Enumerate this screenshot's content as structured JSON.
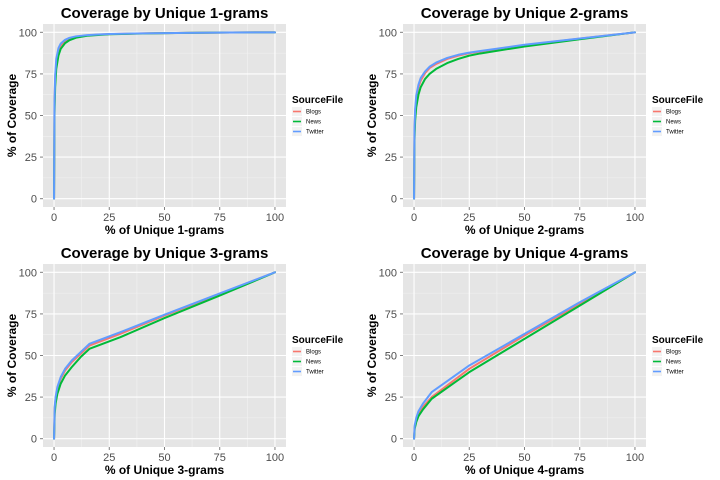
{
  "chart_data": [
    {
      "type": "line",
      "title": "Coverage by Unique 1-grams",
      "xlabel": "% of Unique 1-grams",
      "ylabel": "% of Coverage",
      "xlim": [
        0,
        100
      ],
      "ylim": [
        0,
        100
      ],
      "x_ticks": [
        0,
        25,
        50,
        75,
        100
      ],
      "y_ticks": [
        0,
        25,
        50,
        75,
        100
      ],
      "grid": true,
      "legend": {
        "title": "SourceFile",
        "placement": "right"
      },
      "series": [
        {
          "name": "Blogs",
          "color": "#f8766d",
          "x": [
            0,
            0.2,
            0.5,
            1,
            2,
            3,
            5,
            7,
            10,
            15,
            20,
            25,
            40,
            60,
            80,
            100
          ],
          "y": [
            0,
            55,
            72,
            82,
            89,
            92,
            95,
            96.3,
            97.3,
            98.1,
            98.6,
            98.9,
            99.4,
            99.7,
            99.9,
            100
          ]
        },
        {
          "name": "News",
          "color": "#00ba38",
          "x": [
            0,
            0.2,
            0.5,
            1,
            2,
            3,
            5,
            7,
            10,
            15,
            20,
            25,
            40,
            60,
            80,
            100
          ],
          "y": [
            0,
            50,
            67,
            78,
            86,
            90,
            93.5,
            95.3,
            96.8,
            97.9,
            98.4,
            98.8,
            99.3,
            99.7,
            99.9,
            100
          ]
        },
        {
          "name": "Twitter",
          "color": "#619cff",
          "x": [
            0,
            0.2,
            0.5,
            1,
            2,
            3,
            5,
            7,
            10,
            15,
            20,
            25,
            40,
            60,
            80,
            100
          ],
          "y": [
            0,
            57,
            74,
            84,
            90.5,
            93.2,
            95.5,
            96.7,
            97.6,
            98.3,
            98.7,
            99,
            99.4,
            99.7,
            99.9,
            100
          ]
        }
      ]
    },
    {
      "type": "line",
      "title": "Coverage by Unique 2-grams",
      "xlabel": "% of Unique 2-grams",
      "ylabel": "% of Coverage",
      "xlim": [
        0,
        100
      ],
      "ylim": [
        0,
        100
      ],
      "x_ticks": [
        0,
        25,
        50,
        75,
        100
      ],
      "y_ticks": [
        0,
        25,
        50,
        75,
        100
      ],
      "grid": true,
      "legend": {
        "title": "SourceFile",
        "placement": "right"
      },
      "series": [
        {
          "name": "Blogs",
          "color": "#f8766d",
          "x": [
            0,
            0.2,
            0.5,
            1,
            2,
            3,
            5,
            7,
            10,
            15,
            20,
            25,
            30,
            50,
            75,
            100
          ],
          "y": [
            0,
            40,
            52,
            60,
            67,
            71,
            75.5,
            78.5,
            81,
            84,
            86,
            87.5,
            88.5,
            92.3,
            96.2,
            100
          ]
        },
        {
          "name": "News",
          "color": "#00ba38",
          "x": [
            0,
            0.2,
            0.5,
            1,
            2,
            3,
            5,
            7,
            10,
            15,
            20,
            25,
            30,
            50,
            75,
            100
          ],
          "y": [
            0,
            35,
            47,
            55,
            62.5,
            67,
            72,
            75,
            78,
            81.5,
            84,
            86,
            87.3,
            91.5,
            95.8,
            100
          ]
        },
        {
          "name": "Twitter",
          "color": "#619cff",
          "x": [
            0,
            0.2,
            0.5,
            1,
            2,
            3,
            5,
            7,
            10,
            15,
            20,
            25,
            30,
            50,
            75,
            100
          ],
          "y": [
            0,
            42,
            54,
            62,
            68.5,
            72.5,
            76.5,
            79.3,
            81.8,
            84.6,
            86.5,
            87.8,
            88.8,
            92.5,
            96.3,
            100
          ]
        }
      ]
    },
    {
      "type": "line",
      "title": "Coverage by Unique 3-grams",
      "xlabel": "% of Unique 3-grams",
      "ylabel": "% of Coverage",
      "xlim": [
        0,
        100
      ],
      "ylim": [
        0,
        100
      ],
      "x_ticks": [
        0,
        25,
        50,
        75,
        100
      ],
      "y_ticks": [
        0,
        25,
        50,
        75,
        100
      ],
      "grid": true,
      "legend": {
        "title": "SourceFile",
        "placement": "right"
      },
      "series": [
        {
          "name": "Blogs",
          "color": "#f8766d",
          "x": [
            0,
            0.3,
            0.7,
            1.5,
            3,
            5,
            8,
            12,
            16,
            30,
            50,
            75,
            100
          ],
          "y": [
            0,
            18,
            24,
            30,
            36,
            41,
            46,
            51,
            56,
            63,
            74,
            87,
            100
          ]
        },
        {
          "name": "News",
          "color": "#00ba38",
          "x": [
            0,
            0.3,
            0.7,
            1.5,
            3,
            5,
            8,
            12,
            16,
            30,
            50,
            75,
            100
          ],
          "y": [
            0,
            15,
            21,
            27,
            33,
            38,
            43,
            49,
            54,
            61,
            72.5,
            86,
            100
          ]
        },
        {
          "name": "Twitter",
          "color": "#619cff",
          "x": [
            0,
            0.3,
            0.7,
            1.5,
            3,
            5,
            8,
            12,
            16,
            30,
            50,
            75,
            100
          ],
          "y": [
            0,
            19,
            25,
            31,
            37,
            42,
            47,
            52,
            57,
            64,
            74.5,
            87.3,
            100
          ]
        }
      ]
    },
    {
      "type": "line",
      "title": "Coverage by Unique 4-grams",
      "xlabel": "% of Unique 4-grams",
      "ylabel": "% of Coverage",
      "xlim": [
        0,
        100
      ],
      "ylim": [
        0,
        100
      ],
      "x_ticks": [
        0,
        25,
        50,
        75,
        100
      ],
      "y_ticks": [
        0,
        25,
        50,
        75,
        100
      ],
      "grid": true,
      "legend": {
        "title": "SourceFile",
        "placement": "right"
      },
      "series": [
        {
          "name": "Blogs",
          "color": "#f8766d",
          "x": [
            0,
            0.3,
            1,
            2,
            4,
            8,
            25,
            50,
            75,
            100
          ],
          "y": [
            0,
            7,
            11,
            15,
            19,
            25,
            42,
            62,
            81,
            100
          ]
        },
        {
          "name": "News",
          "color": "#00ba38",
          "x": [
            0,
            0.3,
            1,
            2,
            4,
            8,
            25,
            50,
            75,
            100
          ],
          "y": [
            0,
            6,
            10,
            13.5,
            17.5,
            24,
            40,
            60,
            80,
            100
          ]
        },
        {
          "name": "Twitter",
          "color": "#619cff",
          "x": [
            0,
            0.3,
            1,
            2,
            4,
            8,
            25,
            50,
            75,
            100
          ],
          "y": [
            0,
            8,
            12.5,
            16.5,
            21,
            28,
            44,
            63,
            82,
            100
          ]
        }
      ]
    }
  ]
}
